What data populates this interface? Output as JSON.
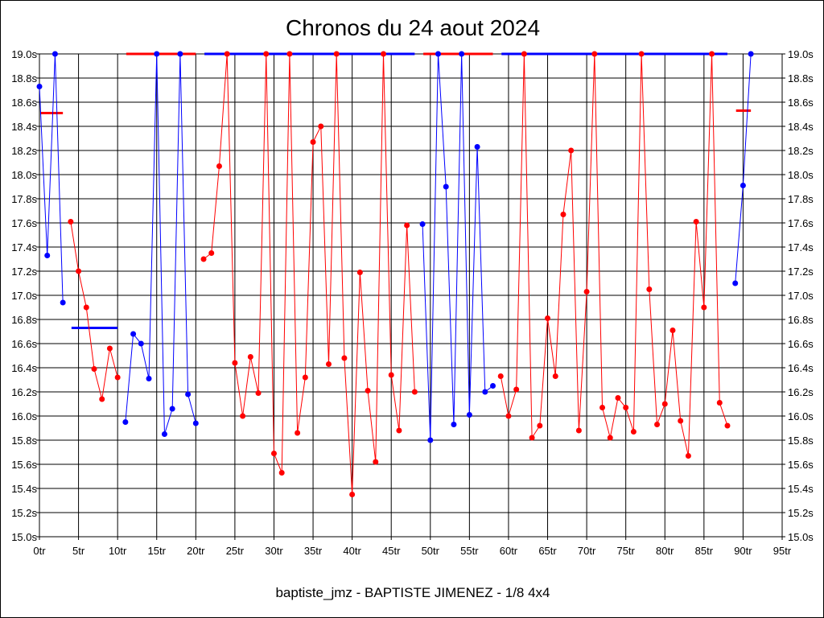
{
  "chart_data": {
    "type": "line",
    "title": "Chronos du 24 aout 2024",
    "subtitle": "baptiste_jmz - BAPTISTE JIMENEZ - 1/8 4x4",
    "xlim": [
      0,
      95
    ],
    "ylim": [
      15.0,
      19.0
    ],
    "x_ticks": [
      0,
      5,
      10,
      15,
      20,
      25,
      30,
      35,
      40,
      45,
      50,
      55,
      60,
      65,
      70,
      75,
      80,
      85,
      90,
      95
    ],
    "x_tick_labels": [
      "0tr",
      "5tr",
      "10tr",
      "15tr",
      "20tr",
      "25tr",
      "30tr",
      "35tr",
      "40tr",
      "45tr",
      "50tr",
      "55tr",
      "60tr",
      "65tr",
      "70tr",
      "75tr",
      "80tr",
      "85tr",
      "90tr",
      "95tr"
    ],
    "y_ticks": [
      15.0,
      15.2,
      15.4,
      15.6,
      15.8,
      16.0,
      16.2,
      16.4,
      16.6,
      16.8,
      17.0,
      17.2,
      17.4,
      17.6,
      17.8,
      18.0,
      18.2,
      18.4,
      18.6,
      18.8,
      19.0
    ],
    "y_tick_labels": [
      "15.0s",
      "15.2s",
      "15.4s",
      "15.6s",
      "15.8s",
      "16.0s",
      "16.2s",
      "16.4s",
      "16.6s",
      "16.8s",
      "17.0s",
      "17.2s",
      "17.4s",
      "17.6s",
      "17.8s",
      "18.0s",
      "18.2s",
      "18.4s",
      "18.6s",
      "18.8s",
      "19.0s"
    ],
    "grid": true,
    "colors": {
      "blue": "#0000ff",
      "red": "#ff0000"
    },
    "series": [
      {
        "color": "#0000ff",
        "points": [
          [
            0,
            18.73
          ],
          [
            1,
            17.33
          ],
          [
            2,
            19.0
          ],
          [
            3,
            16.94
          ]
        ]
      },
      {
        "color": "#ff0000",
        "points": [
          [
            4,
            17.61
          ],
          [
            5,
            17.2
          ],
          [
            6,
            16.9
          ],
          [
            7,
            16.39
          ],
          [
            8,
            16.14
          ],
          [
            9,
            16.56
          ],
          [
            10,
            16.32
          ]
        ]
      },
      {
        "color": "#0000ff",
        "points": [
          [
            11,
            15.95
          ],
          [
            12,
            16.68
          ],
          [
            13,
            16.6
          ],
          [
            14,
            16.31
          ],
          [
            15,
            19.0
          ],
          [
            16,
            15.85
          ],
          [
            17,
            16.06
          ],
          [
            18,
            19.0
          ],
          [
            19,
            16.18
          ],
          [
            20,
            15.94
          ]
        ]
      },
      {
        "color": "#ff0000",
        "points": [
          [
            21,
            17.3
          ],
          [
            22,
            17.35
          ],
          [
            23,
            18.07
          ],
          [
            24,
            19.0
          ],
          [
            25,
            16.44
          ],
          [
            26,
            16.0
          ],
          [
            27,
            16.49
          ],
          [
            28,
            16.19
          ],
          [
            29,
            19.0
          ],
          [
            30,
            15.69
          ],
          [
            31,
            15.53
          ],
          [
            32,
            19.0
          ],
          [
            33,
            15.86
          ],
          [
            34,
            16.32
          ],
          [
            35,
            18.27
          ],
          [
            36,
            18.4
          ],
          [
            37,
            16.43
          ],
          [
            38,
            19.0
          ],
          [
            39,
            16.48
          ],
          [
            40,
            15.35
          ],
          [
            41,
            17.19
          ],
          [
            42,
            16.21
          ],
          [
            43,
            15.62
          ],
          [
            44,
            19.0
          ],
          [
            45,
            16.34
          ],
          [
            46,
            15.88
          ],
          [
            47,
            17.58
          ],
          [
            48,
            16.2
          ]
        ]
      },
      {
        "color": "#0000ff",
        "points": [
          [
            49,
            17.59
          ],
          [
            50,
            15.8
          ],
          [
            51,
            19.0
          ],
          [
            52,
            17.9
          ],
          [
            53,
            15.93
          ],
          [
            54,
            19.0
          ],
          [
            55,
            16.01
          ],
          [
            56,
            18.23
          ],
          [
            57,
            16.2
          ],
          [
            58,
            16.25
          ]
        ]
      },
      {
        "color": "#ff0000",
        "points": [
          [
            59,
            16.33
          ],
          [
            60,
            16.0
          ],
          [
            61,
            16.22
          ],
          [
            62,
            19.0
          ],
          [
            63,
            15.82
          ],
          [
            64,
            15.92
          ],
          [
            65,
            16.81
          ],
          [
            66,
            16.33
          ],
          [
            67,
            17.67
          ],
          [
            68,
            18.2
          ],
          [
            69,
            15.88
          ],
          [
            70,
            17.03
          ],
          [
            71,
            19.0
          ],
          [
            72,
            16.07
          ],
          [
            73,
            15.82
          ],
          [
            74,
            16.15
          ],
          [
            75,
            16.07
          ],
          [
            76,
            15.87
          ],
          [
            77,
            19.0
          ],
          [
            78,
            17.05
          ],
          [
            79,
            15.93
          ],
          [
            80,
            16.1
          ],
          [
            81,
            16.71
          ],
          [
            82,
            15.96
          ],
          [
            83,
            15.67
          ],
          [
            84,
            17.61
          ],
          [
            85,
            16.9
          ],
          [
            86,
            19.0
          ],
          [
            87,
            16.11
          ],
          [
            88,
            15.92
          ]
        ]
      },
      {
        "color": "#0000ff",
        "points": [
          [
            89,
            17.1
          ],
          [
            90,
            17.91
          ],
          [
            91,
            19.0
          ]
        ]
      }
    ],
    "average_lines": [
      {
        "color": "#ff0000",
        "x": [
          0,
          3
        ],
        "y": 18.51
      },
      {
        "color": "#0000ff",
        "x": [
          4,
          10
        ],
        "y": 16.73
      },
      {
        "color": "#ff0000",
        "x": [
          11,
          20
        ],
        "y": 19.0
      },
      {
        "color": "#0000ff",
        "x": [
          21,
          48
        ],
        "y": 19.0
      },
      {
        "color": "#ff0000",
        "x": [
          49,
          58
        ],
        "y": 19.0
      },
      {
        "color": "#0000ff",
        "x": [
          59,
          88
        ],
        "y": 19.0
      },
      {
        "color": "#ff0000",
        "x": [
          89,
          91
        ],
        "y": 18.53
      }
    ]
  }
}
